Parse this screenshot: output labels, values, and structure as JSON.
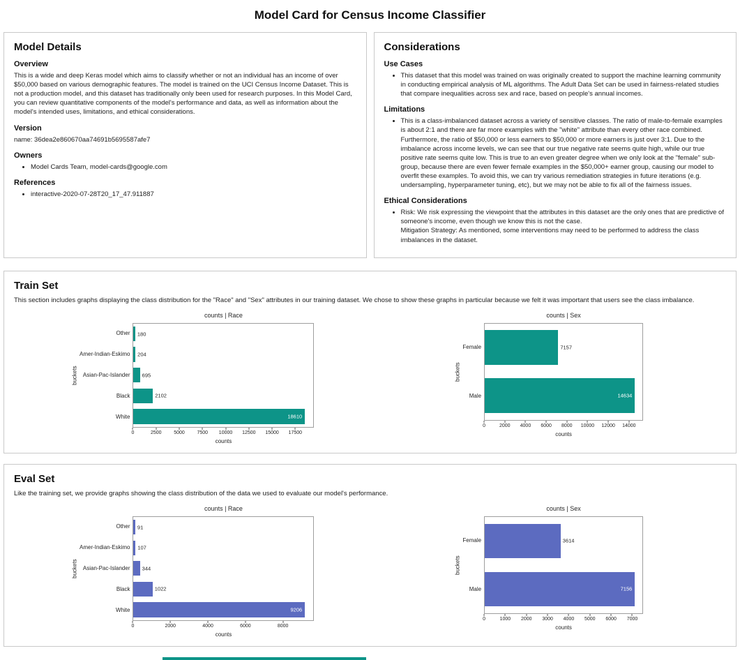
{
  "page_title": "Model Card for Census Income Classifier",
  "model_details": {
    "title": "Model Details",
    "overview": {
      "heading": "Overview",
      "body": "This is a wide and deep Keras model which aims to classify whether or not an individual has an income of over $50,000 based on various demographic features. The model is trained on the UCI Census Income Dataset. This is not a production model, and this dataset has traditionally only been used for research purposes. In this Model Card, you can review quantitative components of the model's performance and data, as well as information about the model's intended uses, limitations, and ethical considerations.",
      "heading_version": "Version"
    },
    "version": {
      "heading": "Version",
      "body": "name: 36dea2e860670aa74691b5695587afe7"
    },
    "owners": {
      "heading": "Owners",
      "items": [
        "Model Cards Team, model-cards@google.com"
      ]
    },
    "references": {
      "heading": "References",
      "items": [
        "interactive-2020-07-28T20_17_47.911887"
      ]
    }
  },
  "considerations": {
    "title": "Considerations",
    "use_cases": {
      "heading": "Use Cases",
      "items": [
        "This dataset that this model was trained on was originally created to support the machine learning community in conducting empirical analysis of ML algorithms. The Adult Data Set can be used in fairness-related studies that compare inequalities across sex and race, based on people's annual incomes."
      ]
    },
    "limitations": {
      "heading": "Limitations",
      "items": [
        "This is a class-imbalanced dataset across a variety of sensitive classes. The ratio of male-to-female examples is about 2:1 and there are far more examples with the \"white\" attribute than every other race combined. Furthermore, the ratio of $50,000 or less earners to $50,000 or more earners is just over 3:1. Due to the imbalance across income levels, we can see that our true negative rate seems quite high, while our true positive rate seems quite low. This is true to an even greater degree when we only look at the \"female\" sub-group, because there are even fewer female examples in the $50,000+ earner group, causing our model to overfit these examples. To avoid this, we can try various remediation strategies in future iterations (e.g. undersampling, hyperparameter tuning, etc), but we may not be able to fix all of the fairness issues."
      ]
    },
    "ethical": {
      "heading": "Ethical Considerations",
      "items": [
        "Risk: We risk expressing the viewpoint that the attributes in this dataset are the only ones that are predictive of someone's income, even though we know this is not the case.\nMitigation Strategy: As mentioned, some interventions may need to be performed to address the class imbalances in the dataset."
      ]
    }
  },
  "train_set": {
    "title": "Train Set",
    "description": "This section includes graphs displaying the class distribution for the \"Race\" and \"Sex\" attributes in our training dataset. We chose to show these graphs in particular because we felt it was important that users see the class imbalance."
  },
  "eval_set": {
    "title": "Eval Set",
    "description": "Like the training set, we provide graphs showing the class distribution of the data we used to evaluate our model's performance."
  },
  "chart_data": [
    {
      "id": "train_race",
      "type": "bar",
      "orientation": "horizontal",
      "title": "counts | Race",
      "xlabel": "counts",
      "ylabel": "buckets",
      "categories": [
        "Other",
        "Amer-Indian-Eskimo",
        "Asian-Pac-Islander",
        "Black",
        "White"
      ],
      "values": [
        180,
        204,
        695,
        2102,
        18610
      ],
      "xticks": [
        0,
        2500,
        5000,
        7500,
        10000,
        12500,
        15000,
        17500
      ],
      "xlim": [
        0,
        19540
      ],
      "color": "#0d9488",
      "grid": false,
      "legend": "none"
    },
    {
      "id": "train_sex",
      "type": "bar",
      "orientation": "horizontal",
      "title": "counts | Sex",
      "xlabel": "counts",
      "ylabel": "buckets",
      "categories": [
        "Female",
        "Male"
      ],
      "values": [
        7157,
        14634
      ],
      "xticks": [
        0,
        2000,
        4000,
        6000,
        8000,
        10000,
        12000,
        14000
      ],
      "xlim": [
        0,
        15366
      ],
      "color": "#0d9488",
      "grid": false,
      "legend": "none"
    },
    {
      "id": "eval_race",
      "type": "bar",
      "orientation": "horizontal",
      "title": "counts | Race",
      "xlabel": "counts",
      "ylabel": "buckets",
      "categories": [
        "Other",
        "Amer-Indian-Eskimo",
        "Asian-Pac-Islander",
        "Black",
        "White"
      ],
      "values": [
        91,
        107,
        344,
        1022,
        9206
      ],
      "xticks": [
        0,
        2000,
        4000,
        6000,
        8000
      ],
      "xlim": [
        0,
        9666
      ],
      "color": "#5c6bc0",
      "grid": false,
      "legend": "none"
    },
    {
      "id": "eval_sex",
      "type": "bar",
      "orientation": "horizontal",
      "title": "counts | Sex",
      "xlabel": "counts",
      "ylabel": "buckets",
      "categories": [
        "Female",
        "Male"
      ],
      "values": [
        3614,
        7156
      ],
      "xticks": [
        0,
        1000,
        2000,
        3000,
        4000,
        5000,
        6000,
        7000
      ],
      "xlim": [
        0,
        7514
      ],
      "color": "#5c6bc0",
      "grid": false,
      "legend": "none"
    }
  ]
}
